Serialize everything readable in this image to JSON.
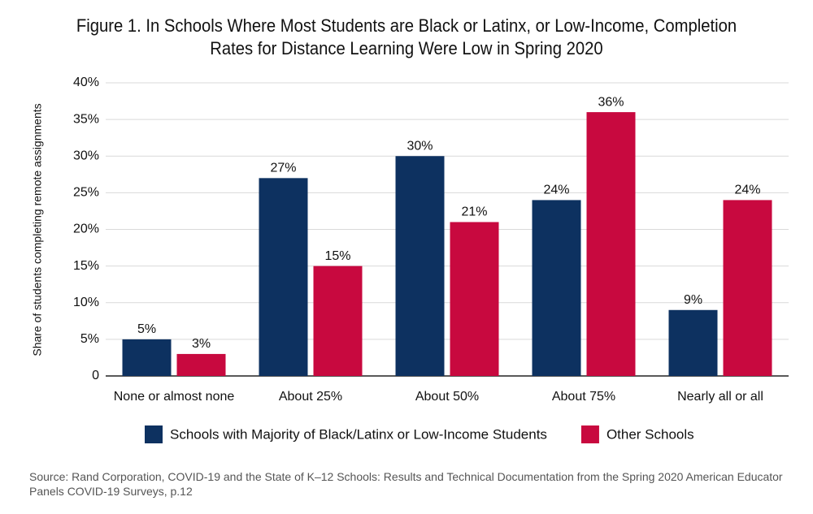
{
  "chart_data": {
    "type": "bar",
    "title": "Figure 1. In Schools Where Most Students are Black or Latinx, or Low-Income, Completion Rates for Distance Learning Were Low in Spring 2020",
    "y_label": "Share of students completing remote assignments",
    "categories": [
      "None or almost none",
      "About 25%",
      "About 50%",
      "About 75%",
      "Nearly all or all"
    ],
    "series": [
      {
        "name": "Schools with Majority of Black/Latinx or Low-Income Students",
        "color": "#0d3160",
        "values": [
          5,
          27,
          30,
          24,
          9
        ],
        "value_labels": [
          "5%",
          "27%",
          "30%",
          "24%",
          "9%"
        ]
      },
      {
        "name": "Other Schools",
        "color": "#c8093f",
        "values": [
          3,
          15,
          21,
          36,
          24
        ],
        "value_labels": [
          "3%",
          "15%",
          "21%",
          "36%",
          "24%"
        ]
      }
    ],
    "ylim": [
      0,
      40
    ],
    "yticks": [
      0,
      {
        "value": 5,
        "label": "5%"
      },
      {
        "value": 10,
        "label": "10%"
      },
      {
        "value": 15,
        "label": "15%"
      },
      {
        "value": 20,
        "label": "20%"
      },
      {
        "value": 25,
        "label": "25%"
      },
      {
        "value": 30,
        "label": "30%"
      },
      {
        "value": 35,
        "label": "35%"
      },
      {
        "value": 40,
        "label": "40%"
      }
    ],
    "grid": true,
    "source": "Source: Rand Corporation, COVID-19 and the State of K–12 Schools: Results and Technical Documentation from the Spring 2020 American Educator Panels COVID-19 Surveys, p.12"
  }
}
